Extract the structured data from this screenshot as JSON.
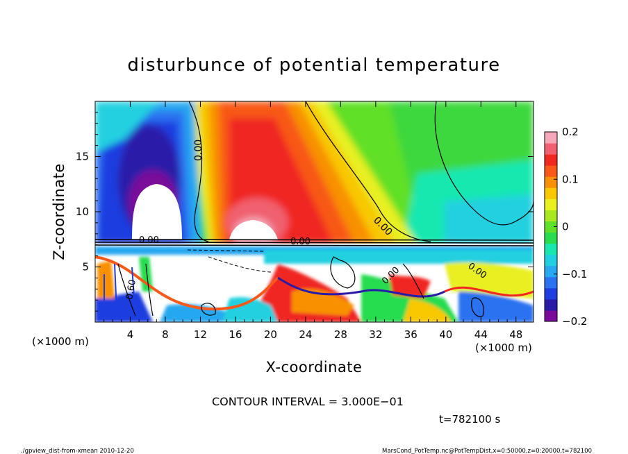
{
  "chart_data": {
    "type": "heatmap",
    "title": "disturbunce of potential temperature",
    "xlabel": "X-coordinate",
    "ylabel": "Z-coordinate",
    "x_unit_left": "(×1000 m)",
    "x_unit_right": "(×1000 m)",
    "xlim": [
      0,
      50
    ],
    "ylim": [
      0,
      20
    ],
    "x_ticks": [
      4,
      8,
      12,
      16,
      20,
      24,
      28,
      32,
      36,
      40,
      44,
      48
    ],
    "y_ticks": [
      5,
      10,
      15
    ],
    "colorbar": {
      "range": [
        -0.2,
        0.2
      ],
      "tick_values": [
        0.2,
        0.1,
        0,
        -0.1,
        -0.2
      ],
      "tick_labels": [
        "0.2",
        "0.1",
        "0",
        "−0.1",
        "−0.2"
      ],
      "colors": [
        "#7a0a9a",
        "#2a1aa8",
        "#1e3ee0",
        "#2a72f0",
        "#28a8f0",
        "#20d0e0",
        "#18e8b0",
        "#28dc50",
        "#60e028",
        "#a8e820",
        "#e8f020",
        "#f8c800",
        "#f89000",
        "#f85818",
        "#f02820",
        "#f06070",
        "#f4a8b8"
      ]
    },
    "contour_interval": "CONTOUR INTERVAL = 3.000E−01",
    "contour_labels": [
      "0.00",
      "0.00",
      "0.00",
      "0.00",
      "0.00",
      "0.00",
      "0.60"
    ],
    "time_label": "t=782100 s",
    "footer_left": "./gpview_dist-from-xmean   2010-12-20",
    "footer_right": "MarsCond_PotTemp.nc@PotTempDist,x=0:50000,z=0:20000,t=782100"
  }
}
